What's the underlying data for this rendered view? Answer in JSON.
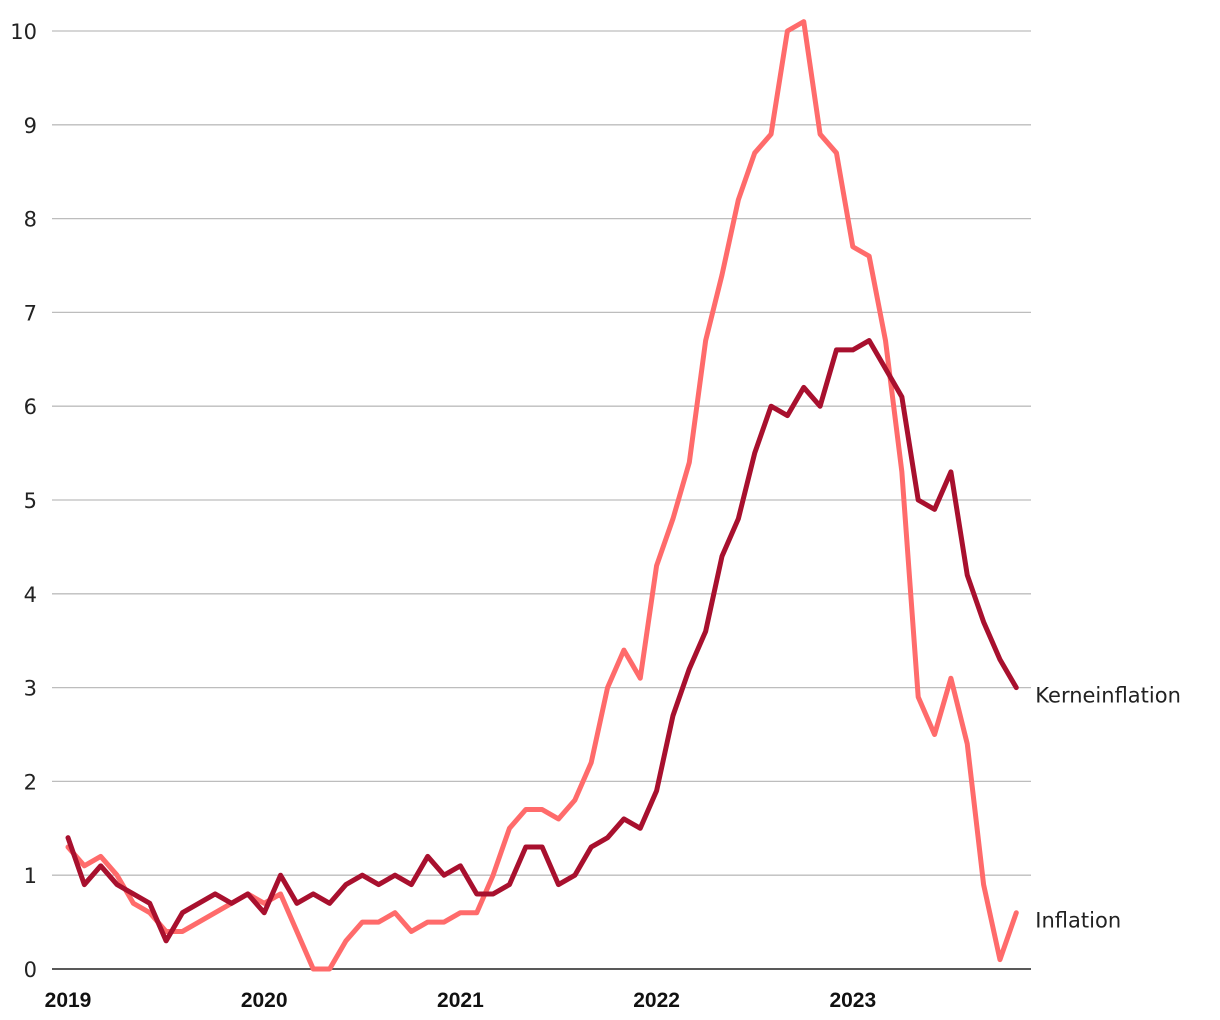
{
  "chart_data": {
    "type": "line",
    "title": "",
    "xlabel": "",
    "ylabel": "",
    "ylim": [
      0,
      10
    ],
    "y_ticks": [
      "0",
      "1",
      "2",
      "3",
      "4",
      "5",
      "6",
      "7",
      "8",
      "9",
      "10"
    ],
    "x_ticks": [
      "2019",
      "2020",
      "2021",
      "2022",
      "2023"
    ],
    "x_start": "2019-01",
    "grid": true,
    "legend": "inline labels at line ends (right)",
    "series": [
      {
        "name": "Inflation",
        "color": "#ff6b6b",
        "values": [
          1.3,
          1.1,
          1.2,
          1.0,
          0.7,
          0.6,
          0.4,
          0.4,
          0.5,
          0.6,
          0.7,
          0.8,
          0.7,
          0.8,
          0.4,
          0.0,
          0.0,
          0.3,
          0.5,
          0.5,
          0.6,
          0.4,
          0.5,
          0.5,
          0.6,
          0.6,
          1.0,
          1.5,
          1.7,
          1.7,
          1.6,
          1.8,
          2.2,
          3.0,
          3.4,
          3.1,
          4.3,
          4.8,
          5.4,
          6.7,
          7.4,
          8.2,
          8.7,
          8.9,
          10.0,
          10.1,
          8.9,
          8.7,
          7.7,
          7.6,
          6.7,
          5.3,
          2.9,
          2.5,
          3.1,
          2.4,
          0.9,
          0.1,
          0.6
        ]
      },
      {
        "name": "Kerneinflation",
        "color": "#a8102e",
        "values": [
          1.4,
          0.9,
          1.1,
          0.9,
          0.8,
          0.7,
          0.3,
          0.6,
          0.7,
          0.8,
          0.7,
          0.8,
          0.6,
          1.0,
          0.7,
          0.8,
          0.7,
          0.9,
          1.0,
          0.9,
          1.0,
          0.9,
          1.2,
          1.0,
          1.1,
          0.8,
          0.8,
          0.9,
          1.3,
          1.3,
          0.9,
          1.0,
          1.3,
          1.4,
          1.6,
          1.5,
          1.9,
          2.7,
          3.2,
          3.6,
          4.4,
          4.8,
          5.5,
          6.0,
          5.9,
          6.2,
          6.0,
          6.6,
          6.6,
          6.7,
          6.4,
          6.1,
          5.0,
          4.9,
          5.3,
          4.2,
          3.7,
          3.3,
          3.0
        ]
      }
    ]
  }
}
